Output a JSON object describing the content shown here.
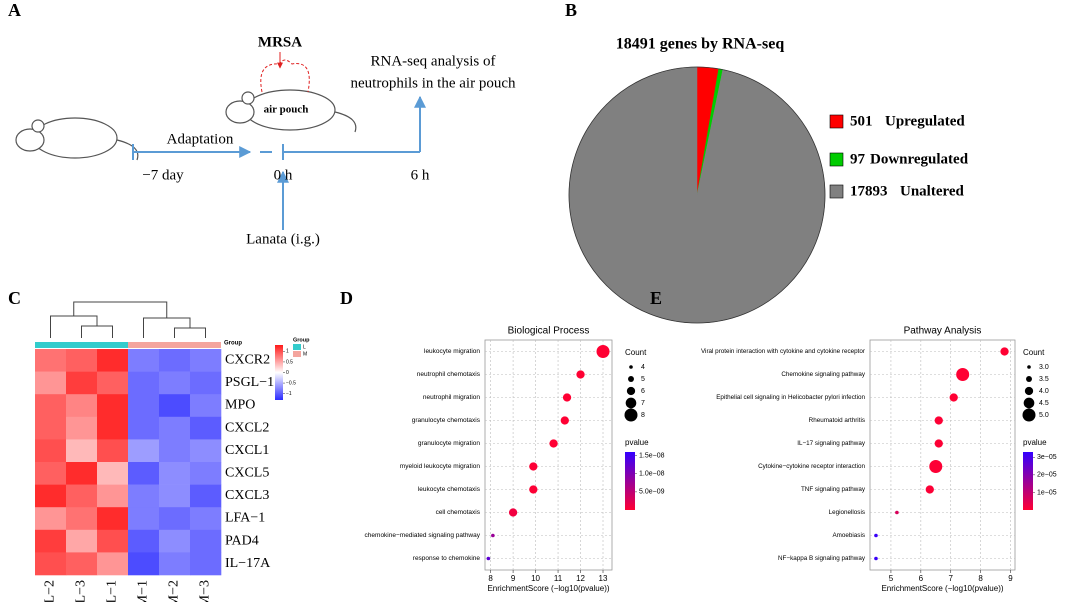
{
  "diagram": {
    "panel_label": "A",
    "pathogen": "MRSA",
    "analysis_line1": "RNA-seq analysis of",
    "analysis_line2": "neutrophils in the air pouch",
    "pouch_label": "air pouch",
    "phase_label": "Adaptation",
    "times": [
      "−7 day",
      "0 h",
      "6 h"
    ],
    "treatment": "Lanata (i.g.)"
  },
  "chart_data": [
    {
      "type": "pie",
      "panel_label": "B",
      "title": "18491 genes by RNA-seq",
      "categories": [
        "Upregulated",
        "Downregulated",
        "Unaltered"
      ],
      "values": [
        501,
        97,
        17893
      ],
      "colors": [
        "#FF0000",
        "#00CC00",
        "#808080"
      ]
    },
    {
      "type": "heatmap",
      "panel_label": "C",
      "x_categories": [
        "L−2",
        "L−3",
        "L−1",
        "M−1",
        "M−2",
        "M−3"
      ],
      "y_categories": [
        "CXCR2",
        "PSGL−1",
        "MPO",
        "CXCL2",
        "CXCL1",
        "CXCL5",
        "CXCL3",
        "LFA−1",
        "PAD4",
        "IL−17A"
      ],
      "values": [
        [
          0.8,
          0.9,
          1.2,
          -0.8,
          -0.9,
          -0.8
        ],
        [
          0.6,
          1.1,
          0.9,
          -0.9,
          -0.8,
          -0.9
        ],
        [
          0.9,
          0.7,
          1.2,
          -0.9,
          -1.1,
          -0.8
        ],
        [
          0.9,
          0.6,
          1.2,
          -0.9,
          -0.8,
          -1.0
        ],
        [
          1.0,
          0.4,
          1.0,
          -0.6,
          -0.8,
          -0.7
        ],
        [
          0.9,
          1.2,
          0.4,
          -1.0,
          -0.7,
          -0.8
        ],
        [
          1.2,
          0.9,
          0.6,
          -0.8,
          -0.7,
          -1.0
        ],
        [
          0.6,
          0.8,
          1.2,
          -0.8,
          -0.9,
          -0.8
        ],
        [
          1.1,
          0.5,
          1.0,
          -1.0,
          -0.7,
          -0.9
        ],
        [
          1.0,
          0.9,
          0.6,
          -1.1,
          -0.8,
          -0.9
        ]
      ],
      "zlim": [
        -1.3,
        1.3
      ],
      "zticks": [
        1,
        0.5,
        0,
        {
          "value": -0.5,
          "label": "−0.5"
        },
        {
          "value": -1,
          "label": "−1"
        }
      ],
      "colors": [
        "#2B2BFF",
        "#FFFFFF",
        "#FF1A1A"
      ],
      "annotation_label": "Group",
      "group_legend_title": "Group",
      "groups": [
        {
          "name": "L",
          "color": "#33CCCC"
        },
        {
          "name": "M",
          "color": "#F4A59E"
        }
      ]
    },
    {
      "type": "dot",
      "panel_label": "D",
      "title": "Biological Process",
      "xlabel": "EnrichmentScore (−log10(pvalue))",
      "categories": [
        "leukocyte migration",
        "neutrophil chemotaxis",
        "neutrophil migration",
        "granulocyte chemotaxis",
        "granulocyte migration",
        "myeloid leukocyte migration",
        "leukocyte chemotaxis",
        "cell chemotaxis",
        "chemokine−mediated signaling pathway",
        "response to chemokine"
      ],
      "values": [
        13.0,
        12.0,
        11.4,
        11.3,
        10.8,
        9.9,
        9.9,
        9.0,
        8.1,
        7.9
      ],
      "counts": [
        8,
        6,
        6,
        6,
        6,
        6,
        6,
        6,
        4,
        4
      ],
      "pvalues": [
        1e-13,
        1e-12,
        4e-12,
        5e-12,
        1.6e-11,
        1.3e-10,
        1.3e-10,
        1e-09,
        7.9e-09,
        1.26e-08
      ],
      "xlim": [
        7.75,
        13.4
      ],
      "xticks": [
        8,
        9,
        10,
        11,
        12,
        13
      ],
      "grid": true,
      "size_title": "Count",
      "size_ticks": [
        4,
        5,
        6,
        7,
        8
      ],
      "color_title": "pvalue",
      "clim": [
        0,
        1.6e-08
      ],
      "cticks": [
        {
          "value": 1.5e-08,
          "label": "1.5e−08"
        },
        {
          "value": 1e-08,
          "label": "1.0e−08"
        },
        {
          "value": 5e-09,
          "label": "5.0e−09"
        }
      ],
      "colors": [
        "#FF0033",
        "#3300FF"
      ]
    },
    {
      "type": "dot",
      "panel_label": "E",
      "title": "Pathway Analysis",
      "xlabel": "EnrichmentScore (−log10(pvalue))",
      "categories": [
        "Viral protein interaction with cytokine and cytokine receptor",
        "Chemokine signaling pathway",
        "Epithelial cell signaling in Helicobacter pylori infection",
        "Rheumatoid arthritis",
        "IL−17 signaling pathway",
        "Cytokine−cytokine receptor interaction",
        "TNF signaling pathway",
        "Legionellosis",
        "Amoebiasis",
        "NF−kappa B signaling pathway"
      ],
      "values": [
        8.8,
        7.4,
        7.1,
        6.6,
        6.6,
        6.5,
        6.3,
        5.2,
        4.5,
        4.5
      ],
      "counts": [
        4,
        5,
        4,
        4,
        4,
        5,
        4,
        3,
        3,
        3
      ],
      "pvalues": [
        1.6e-09,
        4e-08,
        7.9e-08,
        2.5e-07,
        2.5e-07,
        3.2e-07,
        5e-07,
        6.3e-06,
        3.2e-05,
        3.2e-05
      ],
      "xlim": [
        4.3,
        9.15
      ],
      "xticks": [
        5,
        6,
        7,
        8,
        9
      ],
      "grid": true,
      "size_title": "Count",
      "size_ticks": [
        {
          "value": 3,
          "label": "3.0"
        },
        3.5,
        {
          "value": 4,
          "label": "4.0"
        },
        4.5,
        {
          "value": 5,
          "label": "5.0"
        }
      ],
      "color_title": "pvalue",
      "clim": [
        0,
        3.3e-05
      ],
      "cticks": [
        {
          "value": 3e-05,
          "label": "3e−05"
        },
        {
          "value": 2e-05,
          "label": "2e−05"
        },
        {
          "value": 1e-05,
          "label": "1e−05"
        }
      ],
      "colors": [
        "#FF0033",
        "#3300FF"
      ]
    }
  ]
}
